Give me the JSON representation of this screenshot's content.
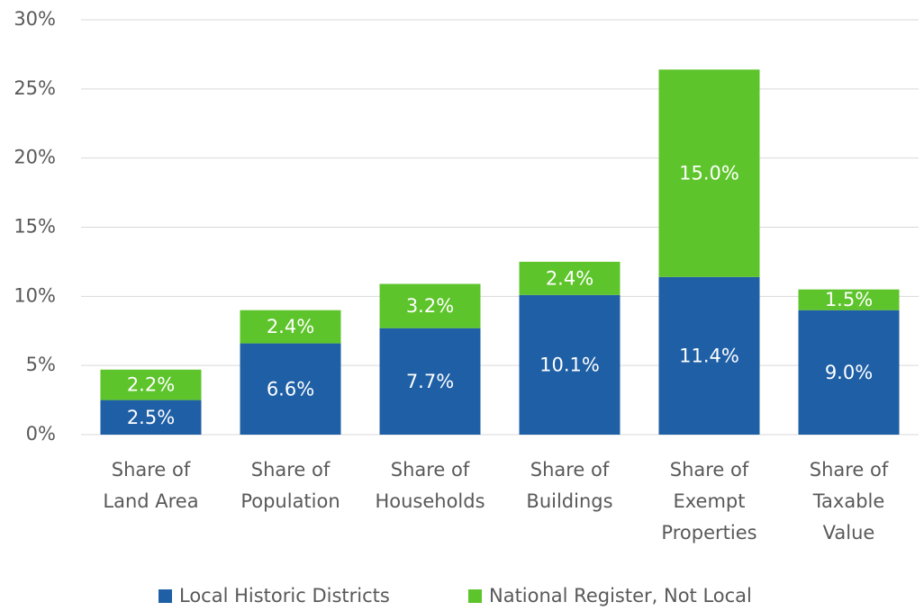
{
  "chart_data": {
    "type": "stacked_bar",
    "categories": [
      [
        "Share of",
        "Land Area"
      ],
      [
        "Share of",
        "Population"
      ],
      [
        "Share of",
        "Households"
      ],
      [
        "Share of",
        "Buildings"
      ],
      [
        "Share of",
        "Exempt",
        "Properties"
      ],
      [
        "Share of",
        "Taxable",
        "Value"
      ]
    ],
    "series": [
      {
        "name": "Local Historic Districts",
        "color": "#1f5fa6",
        "values": [
          2.5,
          6.6,
          7.7,
          10.1,
          11.4,
          9.0
        ],
        "value_labels": [
          "2.5%",
          "6.6%",
          "7.7%",
          "10.1%",
          "11.4%",
          "9.0%"
        ]
      },
      {
        "name": "National Register, Not Local",
        "color": "#5ec42b",
        "values": [
          2.2,
          2.4,
          3.2,
          2.4,
          15.0,
          1.5
        ],
        "value_labels": [
          "2.2%",
          "2.4%",
          "3.2%",
          "2.4%",
          "15.0%",
          "1.5%"
        ]
      }
    ],
    "ylim": [
      0,
      30
    ],
    "yticks": [
      {
        "value": 0,
        "label": "0%"
      },
      {
        "value": 5,
        "label": "5%"
      },
      {
        "value": 10,
        "label": "10%"
      },
      {
        "value": 15,
        "label": "15%"
      },
      {
        "value": 20,
        "label": "20%"
      },
      {
        "value": 25,
        "label": "25%"
      },
      {
        "value": 30,
        "label": "30%"
      }
    ],
    "grid": true,
    "legend": "bottom"
  }
}
